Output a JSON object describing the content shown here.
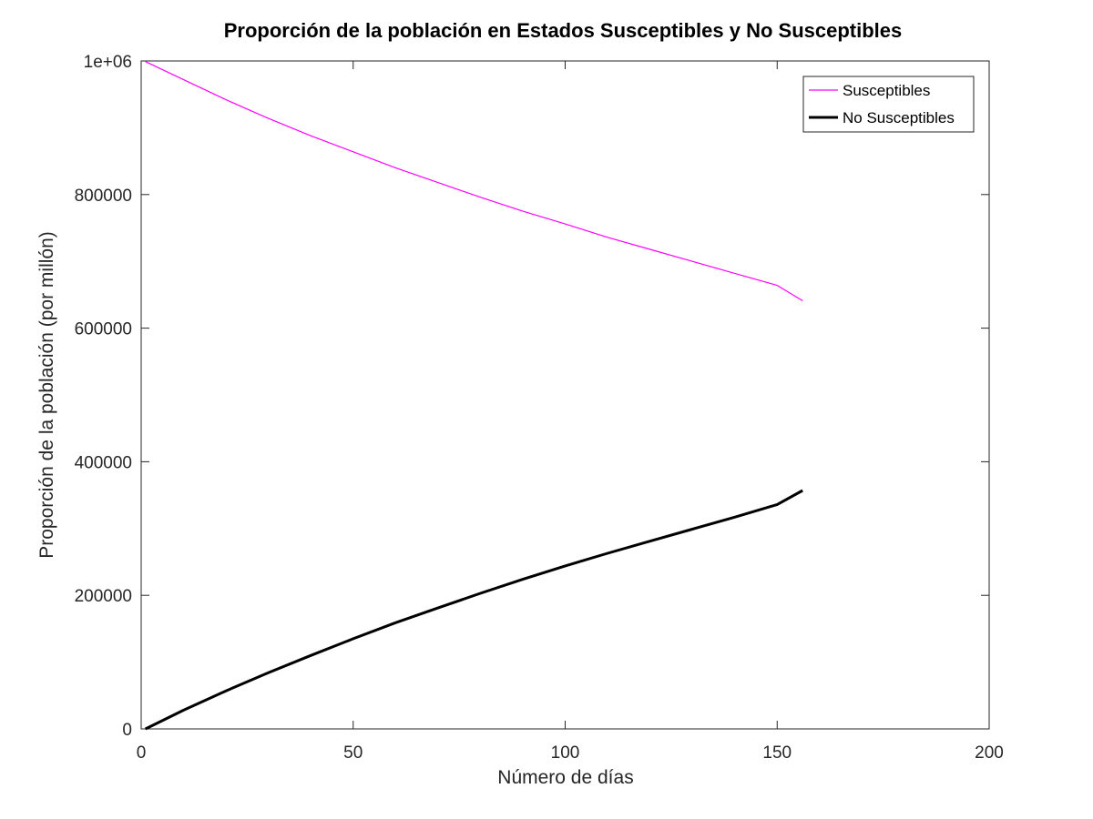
{
  "chart_data": {
    "type": "line",
    "title": "Proporción de la población en Estados Susceptibles y No Susceptibles",
    "xlabel": "Número de días",
    "ylabel": "Proporción de la población (por millón)",
    "xlim": [
      0,
      200
    ],
    "ylim": [
      0,
      1000000
    ],
    "xticks": [
      0,
      50,
      100,
      150,
      200
    ],
    "xtick_labels": [
      "0",
      "50",
      "100",
      "150",
      "200"
    ],
    "yticks": [
      0,
      200000,
      400000,
      600000,
      800000,
      1000000
    ],
    "ytick_labels": [
      "0",
      "200000",
      "400000",
      "600000",
      "800000",
      "1e+06"
    ],
    "grid": false,
    "legend_position": "top-right",
    "series": [
      {
        "name": "Susceptibles",
        "color": "#ff00ff",
        "x": [
          1,
          10,
          20,
          30,
          40,
          50,
          60,
          70,
          80,
          90,
          100,
          110,
          120,
          130,
          140,
          150,
          156
        ],
        "y": [
          999000,
          972000,
          942000,
          914000,
          888000,
          864000,
          840000,
          818000,
          796000,
          775000,
          756000,
          736000,
          718000,
          700000,
          682000,
          664000,
          641000
        ]
      },
      {
        "name": "No Susceptibles",
        "color": "#000000",
        "x": [
          1,
          10,
          20,
          30,
          40,
          50,
          60,
          70,
          80,
          90,
          100,
          110,
          120,
          130,
          140,
          150,
          156
        ],
        "y": [
          0,
          28000,
          57000,
          84000,
          110000,
          135000,
          159000,
          181000,
          203000,
          224000,
          244000,
          263000,
          281000,
          299000,
          317000,
          336000,
          357000
        ]
      }
    ]
  }
}
